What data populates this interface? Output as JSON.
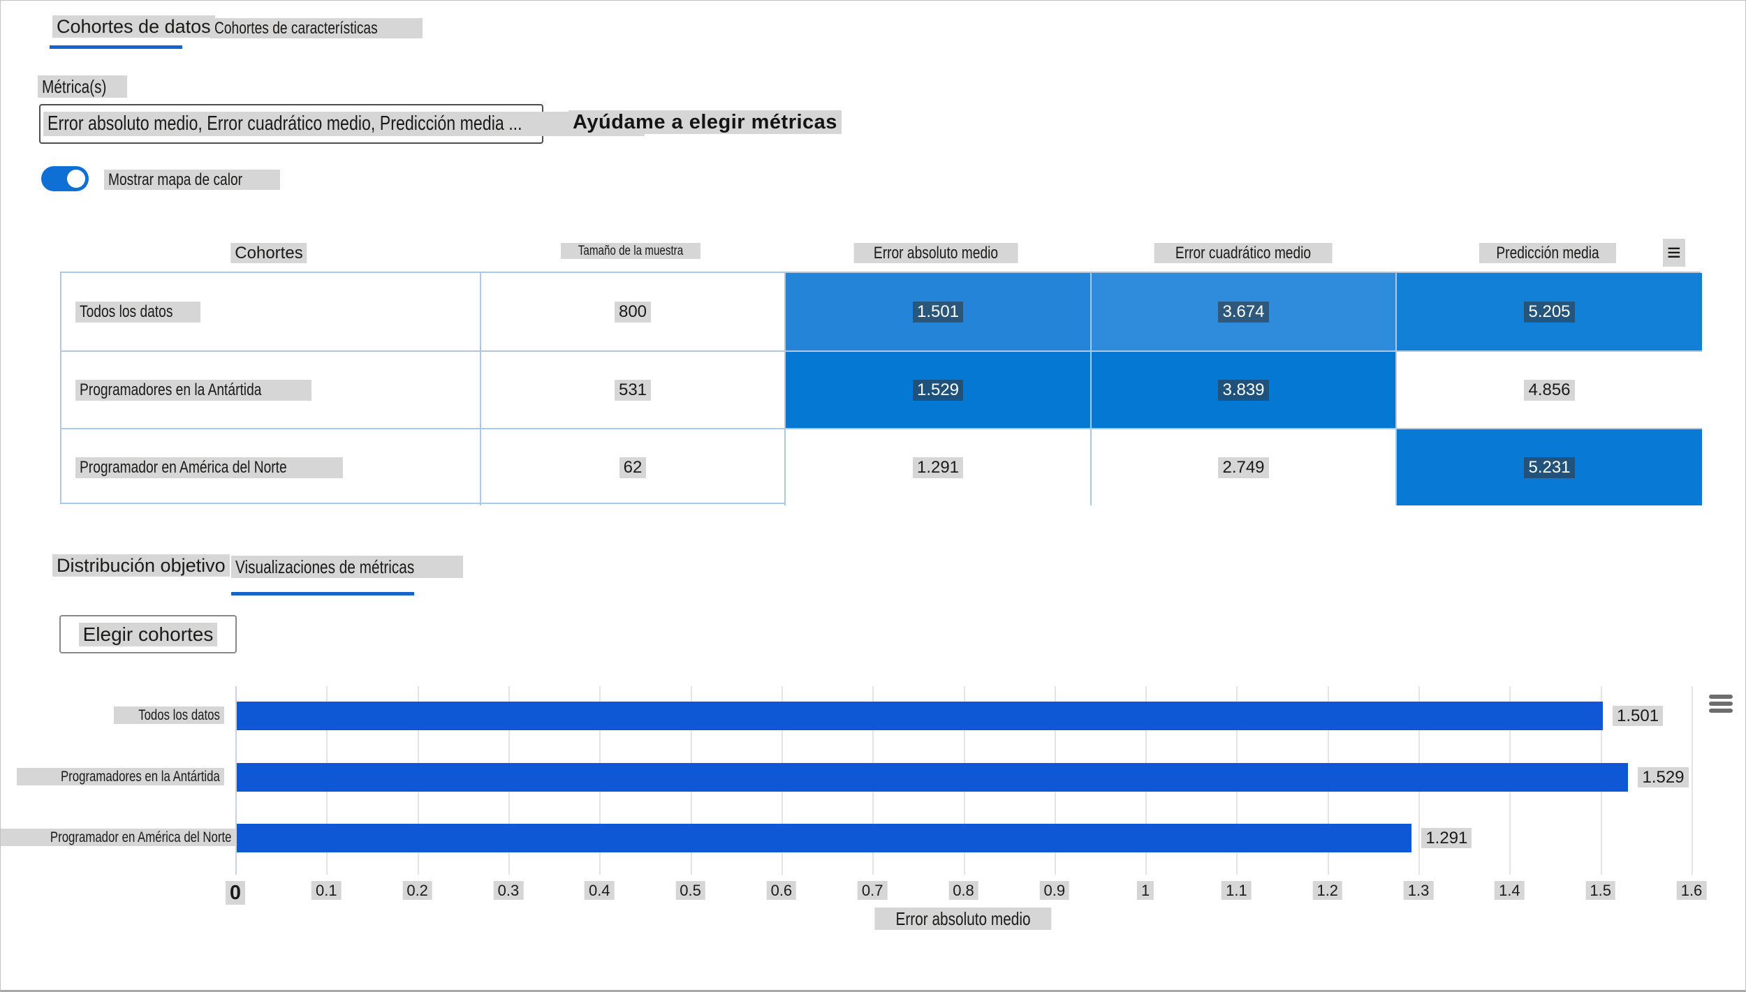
{
  "accent_color": "#1464CC",
  "header": {
    "tabs": [
      {
        "label": "Cohortes de datos",
        "active": true
      },
      {
        "label": "Cohortes de características",
        "active": false
      }
    ],
    "metrics_label": "Métrica(s)",
    "metrics_dropdown": {
      "value": "Error absoluto medio, Error cuadrático medio, Predicción media ...",
      "caret": "V"
    },
    "help_link": "Ayúdame a elegir métricas",
    "heatmap_toggle": {
      "label": "Mostrar mapa de calor",
      "on": true
    }
  },
  "table": {
    "columns": [
      "Cohortes",
      "Tamaño de la muestra",
      "Error absoluto medio",
      "Error cuadrático medio",
      "Predicción media"
    ],
    "menu_icon": "≡",
    "rows": [
      {
        "cohort": "Todos los datos",
        "sample_size": "800",
        "metrics": [
          {
            "value": "1.501",
            "bg": "#2484D8",
            "fg": "#ffffff"
          },
          {
            "value": "3.674",
            "bg": "#2F8BDB",
            "fg": "#ffffff"
          },
          {
            "value": "5.205",
            "bg": "#1380D8",
            "fg": "#ffffff"
          }
        ]
      },
      {
        "cohort": "Programadores en la Antártida",
        "sample_size": "531",
        "metrics": [
          {
            "value": "1.529",
            "bg": "#0578D4",
            "fg": "#ffffff"
          },
          {
            "value": "3.839",
            "bg": "#0578D4",
            "fg": "#ffffff"
          },
          {
            "value": "4.856",
            "bg": "#FFFFFF",
            "fg": "#1b1a19"
          }
        ]
      },
      {
        "cohort": "Programador en América del Norte",
        "sample_size": "62",
        "metrics": [
          {
            "value": "1.291",
            "bg": "#FFFFFF",
            "fg": "#1b1a19"
          },
          {
            "value": "2.749",
            "bg": "#FFFFFF",
            "fg": "#1b1a19"
          },
          {
            "value": "5.231",
            "bg": "#0979D6",
            "fg": "#ffffff"
          }
        ]
      }
    ]
  },
  "viz_section": {
    "tabs": [
      {
        "label": "Distribución objetivo",
        "active": false
      },
      {
        "label": "Visualizaciones de métricas",
        "active": true
      }
    ],
    "choose_cohorts_button": "Elegir cohortes"
  },
  "chart_data": {
    "type": "bar",
    "orientation": "horizontal",
    "title": "",
    "xlabel": "Error absoluto medio",
    "categories": [
      "Todos los datos",
      "Programadores en la Antártida",
      "Programador en América del Norte"
    ],
    "values": [
      1.501,
      1.529,
      1.291
    ],
    "value_labels": [
      "1.501",
      "1.529",
      "1.291"
    ],
    "xlim": [
      0,
      1.6
    ],
    "xticks": [
      "0",
      "0.1",
      "0.2",
      "0.3",
      "0.4",
      "0.5",
      "0.6",
      "0.7",
      "0.8",
      "0.9",
      "1",
      "1.1",
      "1.2",
      "1.3",
      "1.4",
      "1.5",
      "1.6"
    ],
    "bar_color": "#0E58D6",
    "grid": true,
    "legend": false
  }
}
